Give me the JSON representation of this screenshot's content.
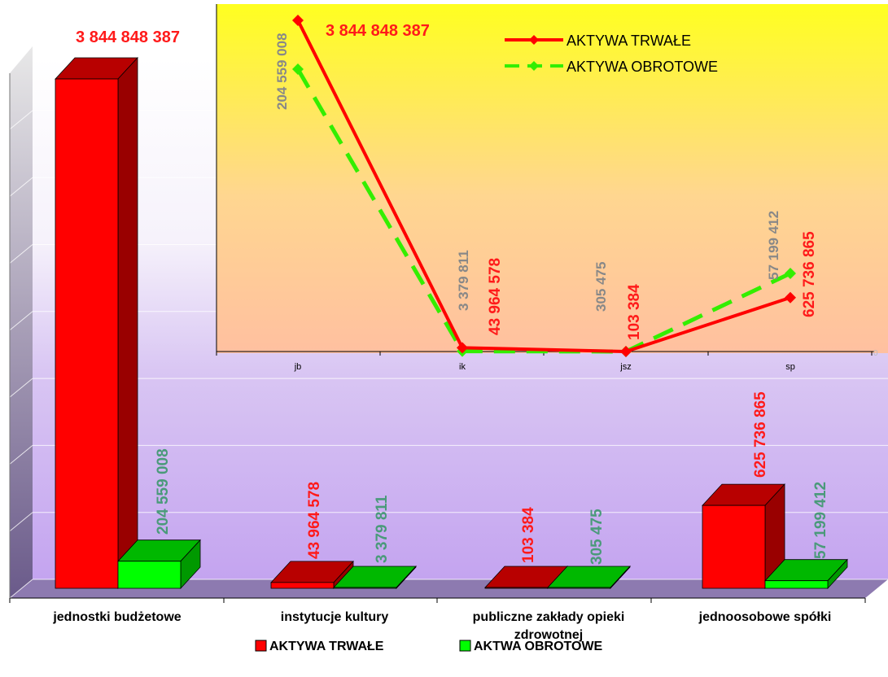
{
  "chart_data": [
    {
      "type": "bar",
      "categories": [
        "jednostki budżetowe",
        "instytucje kultury",
        "publiczne zakłady opieki zdrowotnej",
        "jednoosobowe spółki"
      ],
      "category_lines": [
        [
          "jednostki budżetowe"
        ],
        [
          "instytucje kultury"
        ],
        [
          "publiczne zakłady opieki",
          "zdrowotnej"
        ],
        [
          "jednoosobowe spółki"
        ]
      ],
      "series": [
        {
          "name": "AKTYWA TRWAŁE",
          "values": [
            3844848387,
            43964578,
            103384,
            625736865
          ],
          "labels": [
            "3 844 848 387",
            "43 964 578",
            "103 384",
            "625 736 865"
          ],
          "color": "#ff0000"
        },
        {
          "name": "AKTWA OBROTOWE",
          "values": [
            204559008,
            3379811,
            305475,
            57199412
          ],
          "labels": [
            "204 559 008",
            "3 379 811",
            "305 475",
            "57 199 412"
          ],
          "color": "#00ff00"
        }
      ],
      "label_colors": [
        "#ff1a1a",
        "#4a9a7a"
      ],
      "legend": "bottom",
      "grid": true
    },
    {
      "type": "line",
      "categories": [
        "jb",
        "ik",
        "jsz",
        "sp"
      ],
      "series": [
        {
          "name": "AKTYWA TRWAŁE",
          "values": [
            3844848387,
            43964578,
            103384,
            625736865
          ],
          "labels": [
            "3 844 848 387",
            "43 964 578",
            "103 384",
            "625 736 865"
          ],
          "color": "#ff0000"
        },
        {
          "name": "AKTYWA OBROTOWE",
          "values": [
            204559008,
            3379811,
            305475,
            57199412
          ],
          "labels": [
            "204 559 008",
            "3 379 811",
            "305 475",
            "57 199 412"
          ],
          "color": "#33ee00"
        }
      ],
      "label_colors": [
        "#ff1a1a",
        "#888888"
      ],
      "legend": "top-right",
      "axis_label_right": "0"
    }
  ]
}
